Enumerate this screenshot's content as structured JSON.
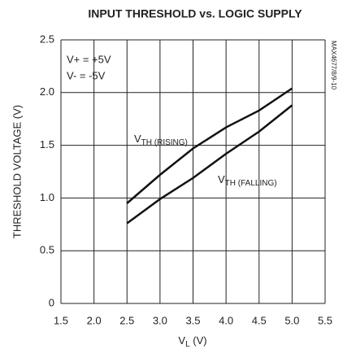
{
  "chart_data": {
    "type": "line",
    "title": "INPUT THRESHOLD vs. LOGIC SUPPLY",
    "ylabel": "THRESHOLD VOLTAGE (V)",
    "xlabel": {
      "base": "V",
      "sub": "L",
      "unit": " (V)"
    },
    "notes": [
      "V+ = +5V",
      "V- = -5V"
    ],
    "side_code": "MAX4677/8/9-10",
    "x": [
      2.5,
      3.0,
      3.5,
      4.0,
      4.5,
      5.0
    ],
    "series": [
      {
        "label": {
          "base": "V",
          "sub": "TH (RISING)"
        },
        "color": "#111111",
        "values": [
          0.95,
          1.22,
          1.47,
          1.67,
          1.83,
          2.04
        ]
      },
      {
        "label": {
          "base": "V",
          "sub": "TH (FALLING)"
        },
        "color": "#111111",
        "values": [
          0.76,
          0.99,
          1.19,
          1.42,
          1.63,
          1.88
        ]
      }
    ],
    "xlim": [
      1.5,
      5.5
    ],
    "xticks": [
      1.5,
      {
        "value": 2,
        "label": "2.0"
      },
      2.5,
      {
        "value": 3,
        "label": "3.0"
      },
      3.5,
      {
        "value": 4,
        "label": "4.0"
      },
      4.5,
      {
        "value": 5,
        "label": "5.0"
      },
      5.5
    ],
    "ylim": [
      0,
      2.5
    ],
    "yticks": [
      0,
      0.5,
      {
        "value": 1,
        "label": "1.0"
      },
      1.5,
      {
        "value": 2,
        "label": "2.0"
      },
      2.5
    ],
    "grid": true
  }
}
